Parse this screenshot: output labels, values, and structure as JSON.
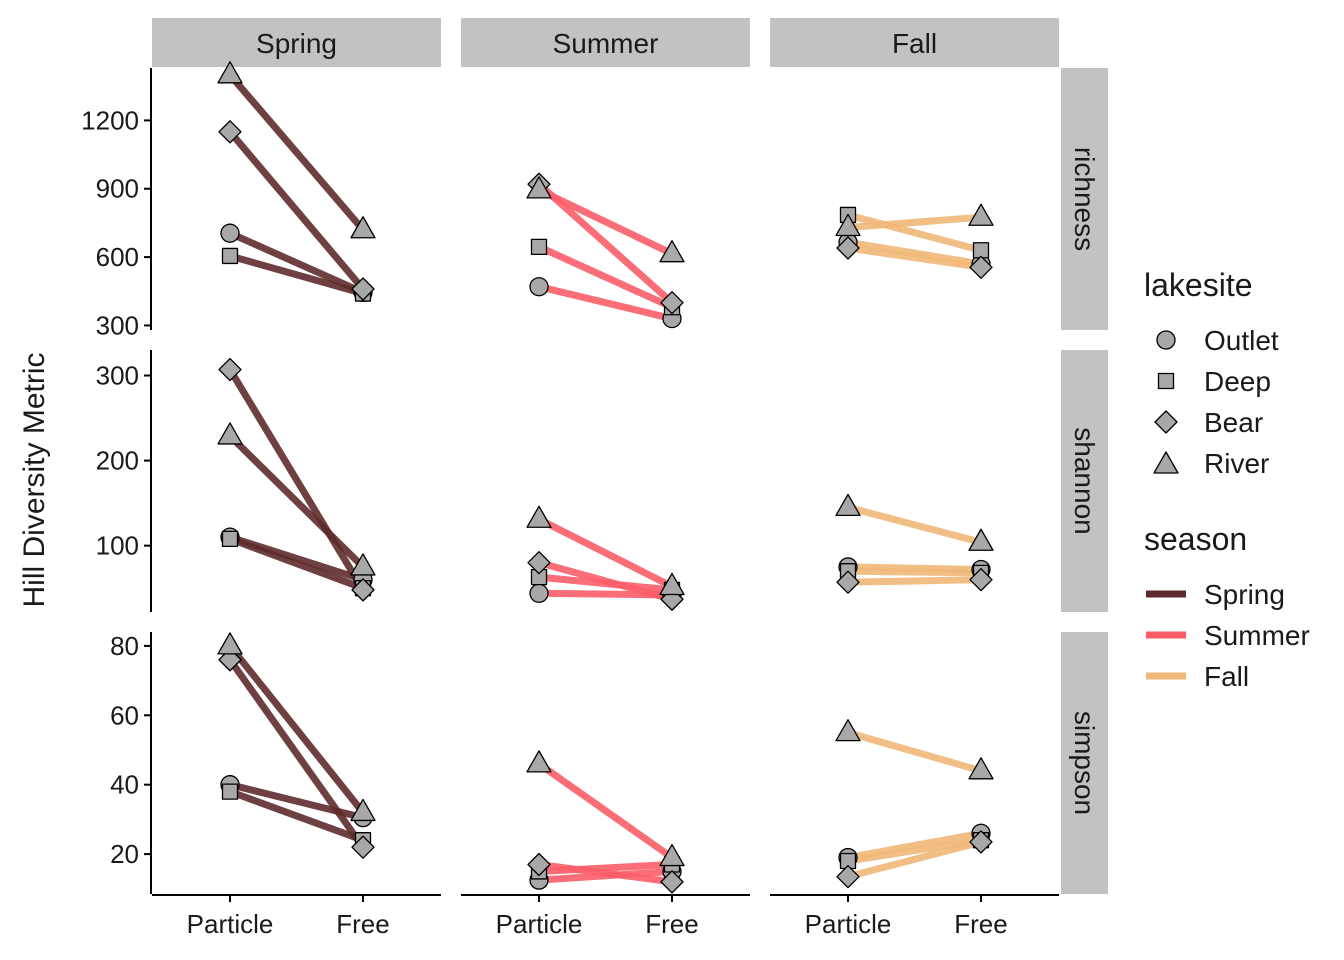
{
  "chart_data": {
    "type": "line",
    "title": "",
    "ylabel": "Hill Diversity Metric",
    "xlabel": "",
    "categories": [
      "Particle",
      "Free"
    ],
    "facet_cols": [
      "Spring",
      "Summer",
      "Fall"
    ],
    "facet_rows": [
      "richness",
      "shannon",
      "simpson"
    ],
    "row_scales": {
      "richness": {
        "ylim": [
          280,
          1430
        ],
        "ticks": [
          300,
          600,
          900,
          1200
        ]
      },
      "shannon": {
        "ylim": [
          22,
          330
        ],
        "ticks": [
          100,
          200,
          300
        ]
      },
      "simpson": {
        "ylim": [
          8.5,
          84
        ],
        "ticks": [
          20,
          40,
          60,
          80
        ]
      }
    },
    "season_colors": {
      "Spring": "#5e2b2c",
      "Summer": "#fb5d68",
      "Fall": "#efb878"
    },
    "lakesites": [
      "Outlet",
      "Deep",
      "Bear",
      "River"
    ],
    "lakesite_shapes": {
      "Outlet": "circle",
      "Deep": "square",
      "Bear": "diamond",
      "River": "triangle"
    },
    "point_fill": "#a8a8a8",
    "grid": false,
    "legend_position": "right",
    "series": [
      {
        "season": "Spring",
        "metric": "richness",
        "lakesite": "Outlet",
        "values": [
          705,
          445
        ]
      },
      {
        "season": "Spring",
        "metric": "richness",
        "lakesite": "Deep",
        "values": [
          605,
          440
        ]
      },
      {
        "season": "Spring",
        "metric": "richness",
        "lakesite": "Bear",
        "values": [
          1150,
          460
        ]
      },
      {
        "season": "Spring",
        "metric": "richness",
        "lakesite": "River",
        "values": [
          1400,
          720
        ]
      },
      {
        "season": "Summer",
        "metric": "richness",
        "lakesite": "Outlet",
        "values": [
          470,
          330
        ]
      },
      {
        "season": "Summer",
        "metric": "richness",
        "lakesite": "Deep",
        "values": [
          645,
          380
        ]
      },
      {
        "season": "Summer",
        "metric": "richness",
        "lakesite": "Bear",
        "values": [
          920,
          400
        ]
      },
      {
        "season": "Summer",
        "metric": "richness",
        "lakesite": "River",
        "values": [
          895,
          615
        ]
      },
      {
        "season": "Fall",
        "metric": "richness",
        "lakesite": "Outlet",
        "values": [
          665,
          570
        ]
      },
      {
        "season": "Fall",
        "metric": "richness",
        "lakesite": "Deep",
        "values": [
          785,
          630
        ]
      },
      {
        "season": "Fall",
        "metric": "richness",
        "lakesite": "Bear",
        "values": [
          640,
          555
        ]
      },
      {
        "season": "Fall",
        "metric": "richness",
        "lakesite": "River",
        "values": [
          730,
          775
        ]
      },
      {
        "season": "Spring",
        "metric": "shannon",
        "lakesite": "Outlet",
        "values": [
          110,
          60
        ]
      },
      {
        "season": "Spring",
        "metric": "shannon",
        "lakesite": "Deep",
        "values": [
          108,
          50
        ]
      },
      {
        "season": "Spring",
        "metric": "shannon",
        "lakesite": "Bear",
        "values": [
          307,
          48
        ]
      },
      {
        "season": "Spring",
        "metric": "shannon",
        "lakesite": "River",
        "values": [
          229,
          75
        ]
      },
      {
        "season": "Summer",
        "metric": "shannon",
        "lakesite": "Outlet",
        "values": [
          44,
          42
        ]
      },
      {
        "season": "Summer",
        "metric": "shannon",
        "lakesite": "Deep",
        "values": [
          63,
          48
        ]
      },
      {
        "season": "Summer",
        "metric": "shannon",
        "lakesite": "Bear",
        "values": [
          80,
          37
        ]
      },
      {
        "season": "Summer",
        "metric": "shannon",
        "lakesite": "River",
        "values": [
          131,
          52
        ]
      },
      {
        "season": "Fall",
        "metric": "shannon",
        "lakesite": "Outlet",
        "values": [
          75,
          72
        ]
      },
      {
        "season": "Fall",
        "metric": "shannon",
        "lakesite": "Deep",
        "values": [
          70,
          68
        ]
      },
      {
        "season": "Fall",
        "metric": "shannon",
        "lakesite": "Bear",
        "values": [
          57,
          60
        ]
      },
      {
        "season": "Fall",
        "metric": "shannon",
        "lakesite": "River",
        "values": [
          145,
          104
        ]
      },
      {
        "season": "Spring",
        "metric": "simpson",
        "lakesite": "Outlet",
        "values": [
          40,
          30.5
        ]
      },
      {
        "season": "Spring",
        "metric": "simpson",
        "lakesite": "Deep",
        "values": [
          38,
          24
        ]
      },
      {
        "season": "Spring",
        "metric": "simpson",
        "lakesite": "Bear",
        "values": [
          76,
          22
        ]
      },
      {
        "season": "Spring",
        "metric": "simpson",
        "lakesite": "River",
        "values": [
          80,
          32
        ]
      },
      {
        "season": "Summer",
        "metric": "simpson",
        "lakesite": "Outlet",
        "values": [
          12.5,
          15
        ]
      },
      {
        "season": "Summer",
        "metric": "simpson",
        "lakesite": "Deep",
        "values": [
          15,
          17
        ]
      },
      {
        "season": "Summer",
        "metric": "simpson",
        "lakesite": "Bear",
        "values": [
          17,
          12
        ]
      },
      {
        "season": "Summer",
        "metric": "simpson",
        "lakesite": "River",
        "values": [
          46,
          19
        ]
      },
      {
        "season": "Fall",
        "metric": "simpson",
        "lakesite": "Outlet",
        "values": [
          19,
          26
        ]
      },
      {
        "season": "Fall",
        "metric": "simpson",
        "lakesite": "Deep",
        "values": [
          18,
          24
        ]
      },
      {
        "season": "Fall",
        "metric": "simpson",
        "lakesite": "Bear",
        "values": [
          13.5,
          23.5
        ]
      },
      {
        "season": "Fall",
        "metric": "simpson",
        "lakesite": "River",
        "values": [
          55,
          44
        ]
      }
    ]
  },
  "legend": {
    "lakesite_title": "lakesite",
    "lakesite_items": [
      "Outlet",
      "Deep",
      "Bear",
      "River"
    ],
    "season_title": "season",
    "season_items": [
      "Spring",
      "Summer",
      "Fall"
    ]
  }
}
